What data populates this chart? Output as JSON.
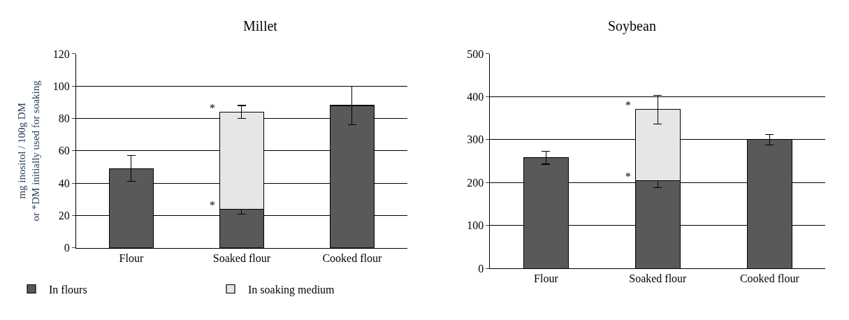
{
  "chart_data": [
    {
      "type": "bar",
      "title": "Millet",
      "ylabel": "mg inositol / 100g DM\nor *DM initially used for soaking",
      "categories": [
        "Flour",
        "Soaked flour",
        "Cooked flour"
      ],
      "stacked": true,
      "series": [
        {
          "name": "In flours",
          "color": "#595959",
          "values": [
            49,
            24,
            88
          ],
          "errors": [
            8,
            3,
            12
          ]
        },
        {
          "name": "In soaking medium",
          "color": "#e6e6e6",
          "values": [
            null,
            60,
            null
          ],
          "errors": [
            null,
            4,
            null
          ]
        }
      ],
      "ylim": [
        0,
        120
      ],
      "yticks": [
        0,
        20,
        40,
        60,
        80,
        100,
        120
      ],
      "grid": "y",
      "legend": "bottom",
      "annotations": [
        {
          "text": "*",
          "x": "Soaked flour",
          "y": 84
        },
        {
          "text": "*",
          "x": "Soaked flour",
          "y": 24
        }
      ]
    },
    {
      "type": "bar",
      "title": "Soybean",
      "categories": [
        "Flour",
        "Soaked flour",
        "Cooked flour"
      ],
      "stacked": true,
      "series": [
        {
          "color": "#595959",
          "values": [
            258,
            205,
            300
          ],
          "errors": [
            15,
            17,
            12
          ]
        },
        {
          "color": "#e6e6e6",
          "values": [
            null,
            165,
            null
          ],
          "errors": [
            null,
            33,
            null
          ]
        }
      ],
      "ylim": [
        0,
        500
      ],
      "yticks": [
        0,
        100,
        200,
        300,
        400,
        500
      ],
      "grid": "y",
      "annotations": [
        {
          "text": "*",
          "x": "Soaked flour",
          "y": 370
        },
        {
          "text": "*",
          "x": "Soaked flour",
          "y": 205
        }
      ]
    }
  ]
}
